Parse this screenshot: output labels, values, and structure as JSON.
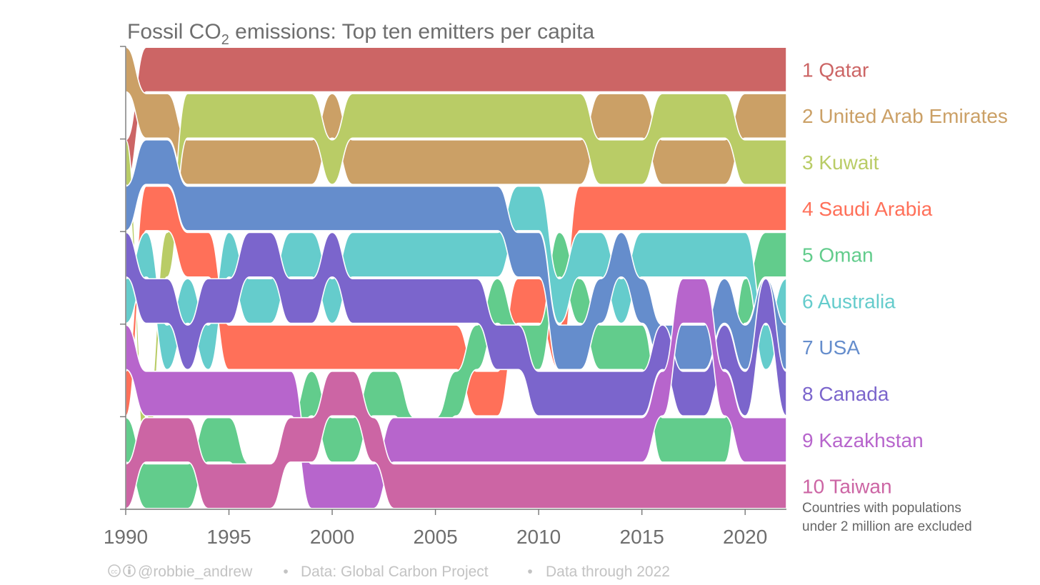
{
  "chart_data": {
    "type": "bump",
    "title_main": "Fossil CO",
    "title_sub": "2",
    "title_rest": " emissions: Top ten emitters per capita",
    "x_ticks": [
      "1990",
      "1995",
      "2000",
      "2005",
      "2010",
      "2015",
      "2020"
    ],
    "xlim": [
      1990,
      2022
    ],
    "ranks": [
      1,
      2,
      3,
      4,
      5,
      6,
      7,
      8,
      9,
      10
    ],
    "note_lines": [
      "Countries with populations",
      "under 2 million are excluded"
    ],
    "footer": {
      "credit": "@robbie_andrew",
      "bullet": "•",
      "source": "Data: Global Carbon Project",
      "through": "Data through 2022"
    },
    "series": [
      {
        "name": "Qatar",
        "rank_label": "1 Qatar",
        "color": "#cc6565",
        "segments": [
          [
            [
              1990,
              3
            ],
            [
              1991,
              1
            ],
            [
              2022,
              1
            ]
          ]
        ]
      },
      {
        "name": "United Arab Emirates",
        "rank_label": "2 United Arab Emirates",
        "color": "#cba066",
        "segments": [
          [
            [
              1990,
              1
            ],
            [
              1991,
              2
            ],
            [
              1992,
              2
            ],
            [
              1993,
              3
            ],
            [
              1999,
              3
            ],
            [
              2000,
              2
            ],
            [
              2001,
              3
            ],
            [
              2012,
              3
            ],
            [
              2013,
              2
            ],
            [
              2015,
              2
            ],
            [
              2016,
              3
            ],
            [
              2019,
              3
            ],
            [
              2020,
              2
            ],
            [
              2022,
              2
            ]
          ]
        ]
      },
      {
        "name": "Kuwait",
        "rank_label": "3 Kuwait",
        "color": "#b9cc66",
        "segments": [
          [
            [
              1990,
              3
            ],
            [
              1991,
              9
            ],
            [
              1992,
              5
            ],
            [
              1993,
              2
            ],
            [
              1999,
              2
            ],
            [
              2000,
              3
            ],
            [
              2001,
              2
            ],
            [
              2012,
              2
            ],
            [
              2013,
              3
            ],
            [
              2015,
              3
            ],
            [
              2016,
              2
            ],
            [
              2019,
              2
            ],
            [
              2020,
              3
            ],
            [
              2022,
              3
            ]
          ]
        ]
      },
      {
        "name": "Saudi Arabia",
        "rank_label": "4 Saudi Arabia",
        "color": "#ff7059",
        "segments": [
          [
            [
              1990,
              8
            ],
            [
              1991,
              4
            ],
            [
              1992,
              4
            ],
            [
              1993,
              5
            ],
            [
              1994,
              5
            ],
            [
              1995,
              7
            ],
            [
              2006,
              7
            ],
            [
              2007,
              8
            ],
            [
              2008,
              8
            ],
            [
              2009,
              6
            ],
            [
              2010,
              6
            ],
            [
              2011,
              7
            ],
            [
              2012,
              4
            ],
            [
              2022,
              4
            ]
          ]
        ]
      },
      {
        "name": "Oman",
        "rank_label": "5 Oman",
        "color": "#62cc8c",
        "segments": [
          [
            [
              1990,
              9
            ],
            [
              1991,
              10
            ],
            [
              1992,
              10
            ],
            [
              1993,
              10
            ],
            [
              1994,
              9
            ],
            [
              1995,
              9
            ],
            [
              1996,
              10
            ],
            [
              1997,
              10
            ],
            [
              1998,
              9
            ],
            [
              1999,
              8
            ],
            [
              2000,
              9
            ],
            [
              2001,
              9
            ],
            [
              2002,
              8
            ],
            [
              2003,
              8
            ],
            [
              2004,
              9
            ],
            [
              2005,
              9
            ],
            [
              2006,
              8
            ],
            [
              2007,
              7
            ],
            [
              2008,
              6
            ],
            [
              2009,
              7
            ],
            [
              2010,
              7
            ],
            [
              2011,
              5
            ],
            [
              2012,
              6
            ],
            [
              2013,
              7
            ],
            [
              2015,
              7
            ],
            [
              2016,
              9
            ],
            [
              2019,
              9
            ],
            [
              2020,
              6
            ],
            [
              2021,
              5
            ],
            [
              2022,
              5
            ]
          ]
        ]
      },
      {
        "name": "Australia",
        "rank_label": "6 Australia",
        "color": "#65cccc",
        "segments": [
          [
            [
              1990,
              6
            ],
            [
              1991,
              5
            ],
            [
              1992,
              7
            ],
            [
              1993,
              6
            ],
            [
              1994,
              7
            ],
            [
              1995,
              5
            ],
            [
              1996,
              6
            ],
            [
              1997,
              6
            ],
            [
              1998,
              5
            ],
            [
              1999,
              5
            ],
            [
              2000,
              6
            ],
            [
              2001,
              5
            ],
            [
              2008,
              5
            ],
            [
              2009,
              4
            ],
            [
              2010,
              4
            ],
            [
              2011,
              6
            ],
            [
              2012,
              5
            ],
            [
              2013,
              5
            ],
            [
              2014,
              6
            ],
            [
              2015,
              5
            ],
            [
              2020,
              5
            ],
            [
              2021,
              7
            ],
            [
              2022,
              6
            ]
          ]
        ]
      },
      {
        "name": "USA",
        "rank_label": "7 USA",
        "color": "#658dcc",
        "segments": [
          [
            [
              1990,
              4
            ],
            [
              1991,
              3
            ],
            [
              1992,
              3
            ],
            [
              1993,
              4
            ],
            [
              2008,
              4
            ],
            [
              2009,
              5
            ],
            [
              2010,
              5
            ],
            [
              2011,
              7
            ],
            [
              2012,
              7
            ],
            [
              2013,
              6
            ],
            [
              2014,
              5
            ],
            [
              2015,
              6
            ],
            [
              2016,
              7
            ],
            [
              2018,
              7
            ],
            [
              2019,
              6
            ],
            [
              2020,
              7
            ],
            [
              2021,
              6
            ],
            [
              2022,
              7
            ]
          ]
        ]
      },
      {
        "name": "Canada",
        "rank_label": "8 Canada",
        "color": "#7b65cc",
        "segments": [
          [
            [
              1990,
              5
            ],
            [
              1991,
              6
            ],
            [
              1992,
              6
            ],
            [
              1993,
              7
            ],
            [
              1994,
              6
            ],
            [
              1995,
              6
            ],
            [
              1996,
              5
            ],
            [
              1997,
              5
            ],
            [
              1998,
              6
            ],
            [
              1999,
              6
            ],
            [
              2000,
              5
            ],
            [
              2001,
              6
            ],
            [
              2007,
              6
            ],
            [
              2008,
              7
            ],
            [
              2009,
              7
            ],
            [
              2010,
              8
            ],
            [
              2015,
              8
            ],
            [
              2016,
              7
            ],
            [
              2017,
              8
            ],
            [
              2018,
              8
            ],
            [
              2019,
              7
            ],
            [
              2020,
              8
            ],
            [
              2021,
              6
            ],
            [
              2022,
              8
            ]
          ]
        ]
      },
      {
        "name": "Kazakhstan",
        "rank_label": "9 Kazakhstan",
        "color": "#b765cc",
        "segments": [
          [
            [
              1990,
              7
            ],
            [
              1991,
              8
            ],
            [
              1998,
              8
            ],
            [
              1999,
              10
            ],
            [
              2002,
              10
            ],
            [
              2003,
              9
            ],
            [
              2015,
              9
            ],
            [
              2016,
              8
            ],
            [
              2017,
              6
            ],
            [
              2018,
              6
            ],
            [
              2019,
              8
            ],
            [
              2020,
              9
            ],
            [
              2022,
              9
            ]
          ]
        ]
      },
      {
        "name": "Taiwan",
        "rank_label": "10 Taiwan",
        "color": "#cc65a4",
        "segments": [
          [
            [
              1990,
              10
            ],
            [
              1991,
              9
            ],
            [
              1993,
              9
            ],
            [
              1994,
              10
            ],
            [
              1997,
              10
            ],
            [
              1998,
              9
            ],
            [
              1999,
              9
            ],
            [
              2000,
              8
            ],
            [
              2001,
              8
            ],
            [
              2002,
              9
            ],
            [
              2003,
              10
            ],
            [
              2022,
              10
            ]
          ]
        ]
      }
    ]
  }
}
